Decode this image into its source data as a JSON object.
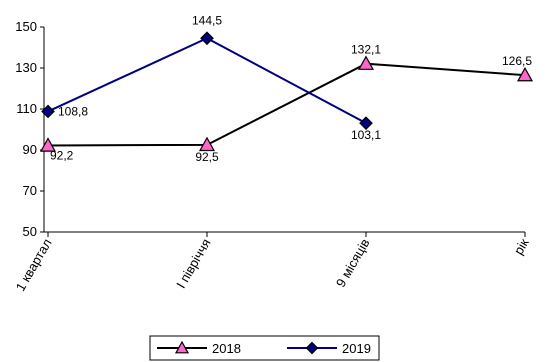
{
  "chart_data": {
    "type": "line",
    "title": "",
    "xlabel": "",
    "ylabel": "",
    "categories": [
      "1 квартал",
      "І півріччя",
      "9 місяців",
      "рік"
    ],
    "ylim": [
      50,
      150
    ],
    "yticks": [
      50,
      70,
      90,
      110,
      130,
      150
    ],
    "grid": false,
    "legend_position": "bottom",
    "series": [
      {
        "name": "2018",
        "values": [
          92.2,
          92.5,
          132.1,
          126.5
        ],
        "labels": [
          "92,2",
          "92,5",
          "132,1",
          "126,5"
        ],
        "marker": "triangle",
        "line_color": "#000000",
        "marker_color": "#ff66cc"
      },
      {
        "name": "2019",
        "values": [
          108.8,
          144.5,
          103.1,
          null
        ],
        "labels": [
          "108,8",
          "144,5",
          "103,1",
          null
        ],
        "marker": "diamond",
        "line_color": "#000080",
        "marker_color": "#000080"
      }
    ]
  }
}
